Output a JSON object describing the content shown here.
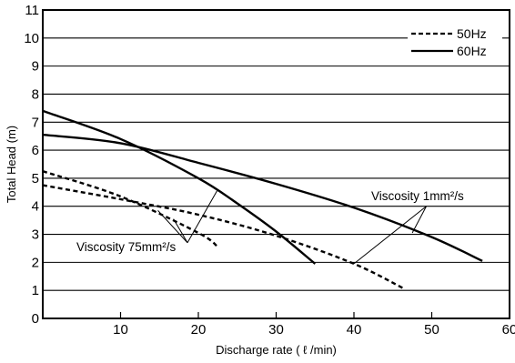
{
  "chart_data": {
    "type": "line",
    "xlabel": "Discharge rate ( ℓ /min)",
    "ylabel": "Total Head (m)",
    "xlim": [
      0,
      60
    ],
    "ylim": [
      0,
      11
    ],
    "xticks": [
      10,
      20,
      30,
      40,
      50,
      60
    ],
    "yticks": [
      0,
      1,
      2,
      3,
      4,
      5,
      6,
      7,
      8,
      9,
      10,
      11
    ],
    "grid": "horizontal",
    "legend_position": "top-right",
    "legend": [
      {
        "label": "50Hz",
        "style": "dashed"
      },
      {
        "label": "60Hz",
        "style": "solid"
      }
    ],
    "annotations": [
      {
        "text": "Viscosity 1mm²/s"
      },
      {
        "text": "Viscosity 75mm²/s"
      }
    ],
    "series": [
      {
        "frequency": "60Hz",
        "viscosity": "1mm²/s",
        "style": "solid",
        "points": [
          [
            0,
            6.55
          ],
          [
            10,
            6.25
          ],
          [
            20,
            5.55
          ],
          [
            30,
            4.8
          ],
          [
            40,
            3.95
          ],
          [
            50,
            2.9
          ],
          [
            56.5,
            2.05
          ]
        ]
      },
      {
        "frequency": "60Hz",
        "viscosity": "75mm²/s",
        "style": "solid",
        "points": [
          [
            0,
            7.4
          ],
          [
            10,
            6.4
          ],
          [
            20,
            5.0
          ],
          [
            25,
            4.1
          ],
          [
            30,
            3.1
          ],
          [
            35,
            1.95
          ]
        ]
      },
      {
        "frequency": "50Hz",
        "viscosity": "1mm²/s",
        "style": "dashed",
        "points": [
          [
            0,
            4.75
          ],
          [
            10,
            4.25
          ],
          [
            20,
            3.7
          ],
          [
            30,
            2.95
          ],
          [
            40,
            1.95
          ],
          [
            46.5,
            1.05
          ]
        ]
      },
      {
        "frequency": "50Hz",
        "viscosity": "75mm²/s",
        "style": "dashed",
        "points": [
          [
            0,
            5.25
          ],
          [
            10,
            4.35
          ],
          [
            20,
            3.05
          ],
          [
            22.5,
            2.55
          ]
        ]
      }
    ]
  }
}
